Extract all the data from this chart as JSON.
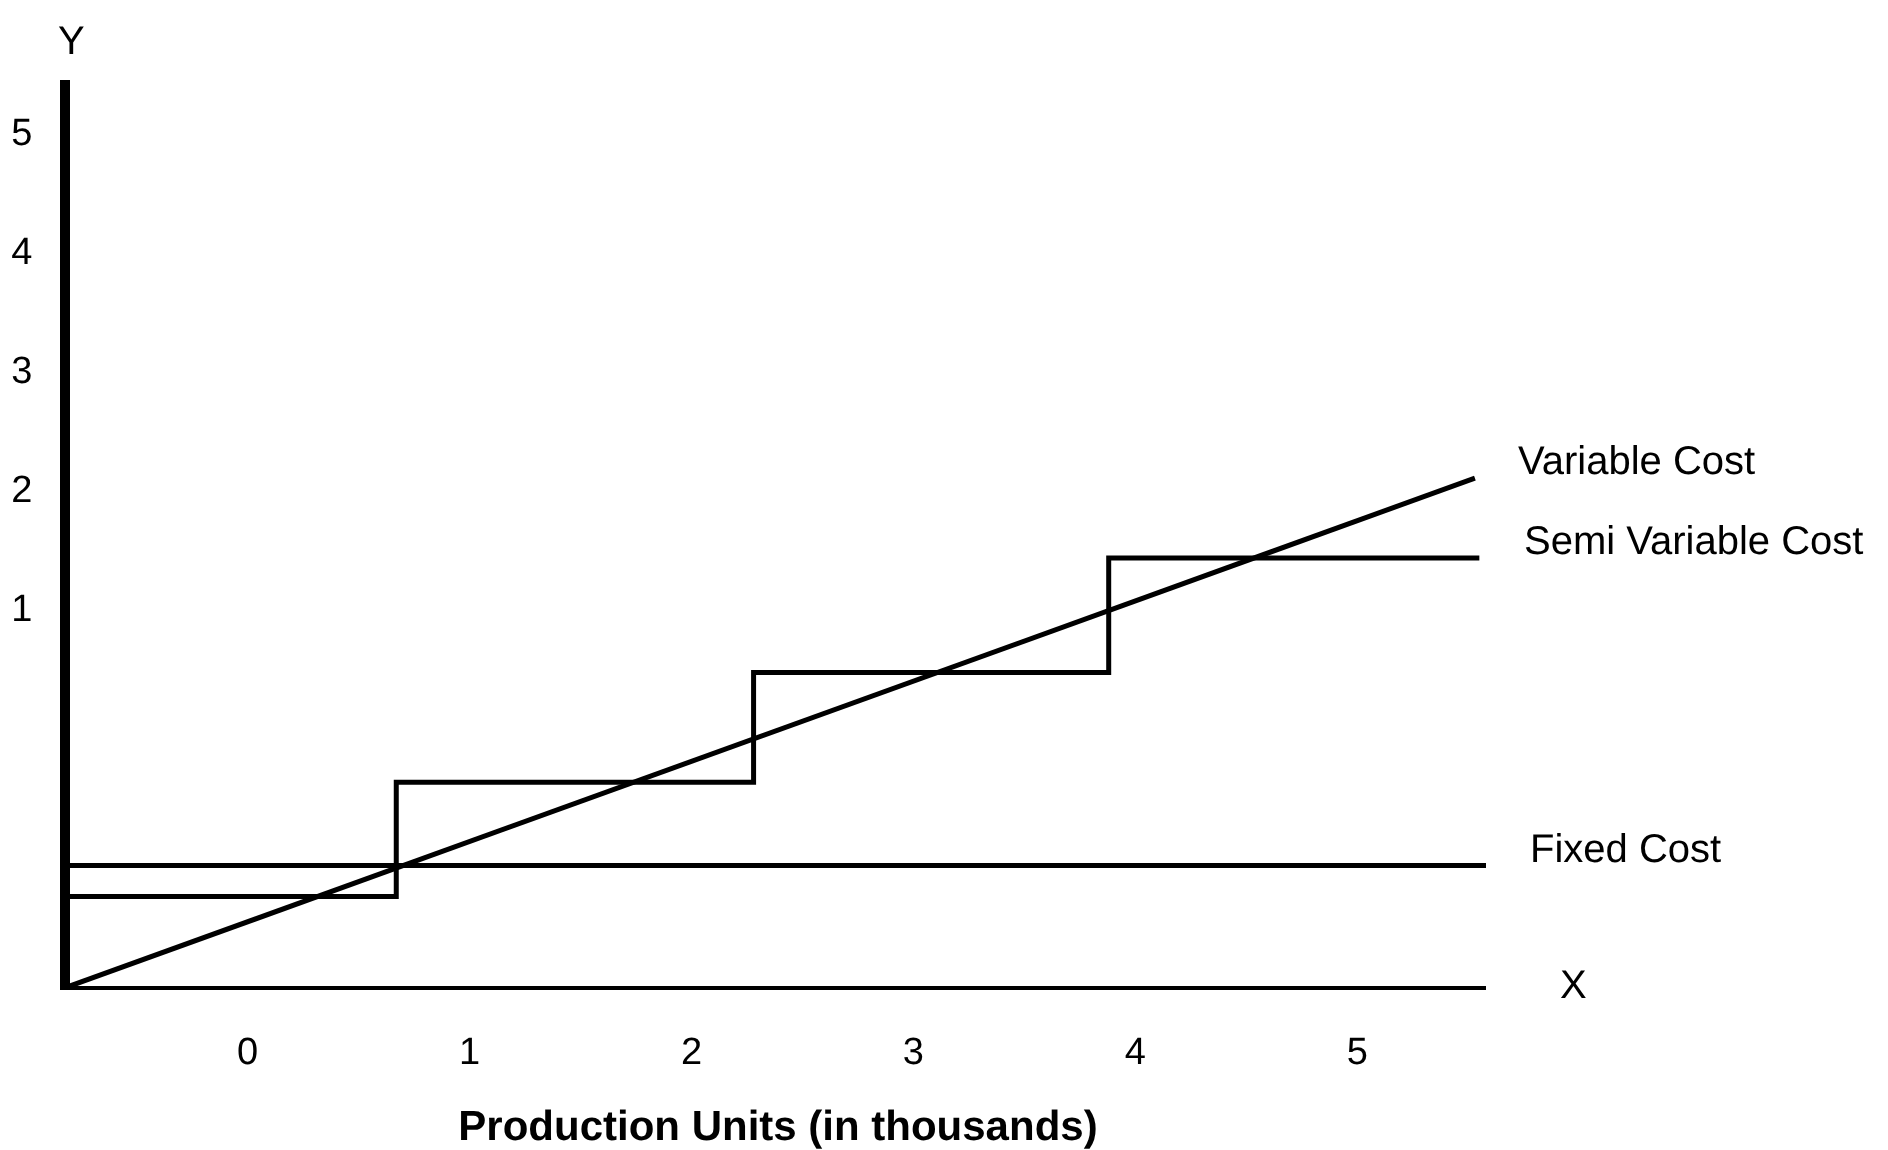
{
  "chart_data": {
    "type": "line",
    "xlabel": "Production Units (in thousands)",
    "annotations": [
      "Y",
      "X"
    ],
    "series": [
      {
        "name": "Variable Cost",
        "color": "#000000",
        "x": [
          -0.8,
          5.53
        ],
        "values": [
          -2.17,
          2.09
        ]
      },
      {
        "name": "Semi Variable Cost",
        "type": "step",
        "color": "#000000",
        "x": [
          -0.8,
          0.67,
          2.28,
          3.88,
          5.55
        ],
        "values": [
          -1.42,
          -0.46,
          0.46,
          1.42,
          1.42
        ]
      },
      {
        "name": "Fixed Cost",
        "color": "#000000",
        "x": [
          -0.8,
          5.58
        ],
        "values": [
          -1.16,
          -1.16
        ]
      }
    ],
    "xlim": [
      -0.8,
      5.58
    ],
    "xticks": [
      0,
      1,
      2,
      3,
      4,
      5
    ],
    "ylim": [
      -2.17,
      5.43
    ],
    "yticks": [
      1,
      2,
      3,
      4,
      5
    ],
    "grid": false,
    "legend": false,
    "marker": "none",
    "line_style": "solid"
  }
}
